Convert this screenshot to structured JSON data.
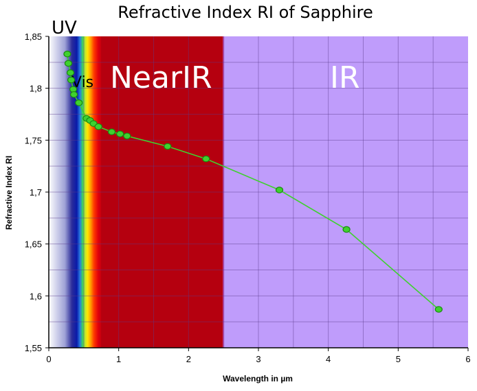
{
  "chart_data": {
    "type": "line",
    "title": "Refractive Index RI of Sapphire",
    "xlabel": "Wavelength in µm",
    "ylabel": "Refractive Index RI",
    "xlim": [
      0,
      6
    ],
    "ylim": [
      1.55,
      1.85
    ],
    "xticks": [
      "0",
      "1",
      "2",
      "3",
      "4",
      "5",
      "6"
    ],
    "yticks": [
      "1,55",
      "1,6",
      "1,65",
      "1,7",
      "1,75",
      "1,8",
      "1,85"
    ],
    "grid": true,
    "regions": [
      {
        "label": "UV",
        "x_from": 0,
        "x_to": 0.38
      },
      {
        "label": "Vis",
        "x_from": 0.38,
        "x_to": 0.75
      },
      {
        "label": "NearIR",
        "x_from": 0.75,
        "x_to": 2.5
      },
      {
        "label": "IR",
        "x_from": 2.5,
        "x_to": 6
      }
    ],
    "region_colors": {
      "NearIR": "#b5000f",
      "IR": "#bf9cfb"
    },
    "series": [
      {
        "color": "#3fd12f",
        "points": [
          [
            0.265,
            1.833
          ],
          [
            0.28,
            1.824
          ],
          [
            0.31,
            1.815
          ],
          [
            0.32,
            1.808
          ],
          [
            0.35,
            1.799
          ],
          [
            0.36,
            1.794
          ],
          [
            0.43,
            1.786
          ],
          [
            0.54,
            1.771
          ],
          [
            0.59,
            1.769
          ],
          [
            0.64,
            1.766
          ],
          [
            0.71,
            1.763
          ],
          [
            0.9,
            1.758
          ],
          [
            1.02,
            1.756
          ],
          [
            1.12,
            1.754
          ],
          [
            1.7,
            1.744
          ],
          [
            2.25,
            1.732
          ],
          [
            3.3,
            1.702
          ],
          [
            4.26,
            1.664
          ],
          [
            5.58,
            1.587
          ]
        ]
      }
    ]
  }
}
